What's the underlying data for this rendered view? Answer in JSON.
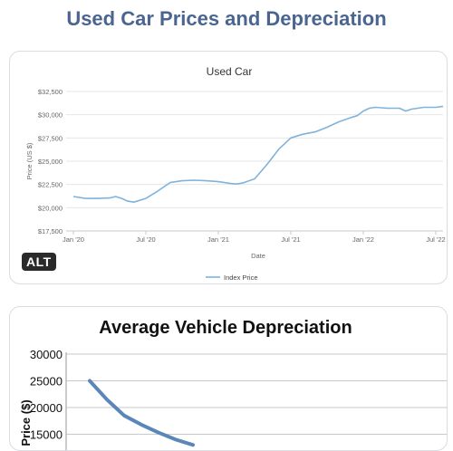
{
  "page": {
    "title": "Used Car Prices and Depreciation"
  },
  "alt_badge": "ALT",
  "chart_data": [
    {
      "type": "line",
      "title": "Used Car",
      "xlabel": "Date",
      "ylabel": "Price (US $)",
      "ylim": [
        17500,
        32500
      ],
      "yticks": [
        "$17,500",
        "$20,000",
        "$22,500",
        "$25,000",
        "$27,500",
        "$30,000",
        "$32,500"
      ],
      "ytick_values": [
        17500,
        20000,
        22500,
        25000,
        27500,
        30000,
        32500
      ],
      "xticks": [
        "Jan '20",
        "Jul '20",
        "Jan '21",
        "Jul '21",
        "Jan '22",
        "Jul '22"
      ],
      "xtick_values": [
        2020.0,
        2020.5,
        2021.0,
        2021.5,
        2022.0,
        2022.5
      ],
      "xlim": [
        2019.95,
        2022.55
      ],
      "grid": true,
      "legend": "bottom-center",
      "series": [
        {
          "name": "Index Price",
          "color": "#7fb3dc",
          "x": [
            2020.0,
            2020.083,
            2020.167,
            2020.25,
            2020.292,
            2020.333,
            2020.375,
            2020.417,
            2020.5,
            2020.583,
            2020.667,
            2020.75,
            2020.833,
            2020.917,
            2021.0,
            2021.083,
            2021.125,
            2021.167,
            2021.25,
            2021.333,
            2021.417,
            2021.5,
            2021.583,
            2021.667,
            2021.75,
            2021.833,
            2021.917,
            2021.958,
            2022.0,
            2022.042,
            2022.083,
            2022.167,
            2022.25,
            2022.292,
            2022.333,
            2022.417,
            2022.5,
            2022.55
          ],
          "y": [
            21200,
            21000,
            21000,
            21050,
            21200,
            21000,
            20700,
            20600,
            21000,
            21800,
            22700,
            22900,
            22950,
            22900,
            22800,
            22600,
            22550,
            22650,
            23100,
            24600,
            26300,
            27500,
            27900,
            28150,
            28650,
            29250,
            29700,
            29900,
            30400,
            30700,
            30800,
            30700,
            30700,
            30400,
            30600,
            30800,
            30800,
            30900
          ]
        }
      ]
    },
    {
      "type": "line",
      "title": "Average Vehicle Depreciation",
      "ylabel": "Price ($)",
      "ylim": [
        10000,
        30000
      ],
      "yticks": [
        "30000",
        "25000",
        "20000",
        "15000"
      ],
      "ytick_values": [
        30000,
        25000,
        20000,
        15000
      ],
      "grid": true,
      "series": [
        {
          "name": "",
          "color": "#5b87b8",
          "x": [
            0,
            0.5,
            1,
            1.5,
            2,
            2.5,
            3
          ],
          "y": [
            25000,
            21500,
            18500,
            16800,
            15300,
            14000,
            13000
          ]
        }
      ]
    }
  ]
}
